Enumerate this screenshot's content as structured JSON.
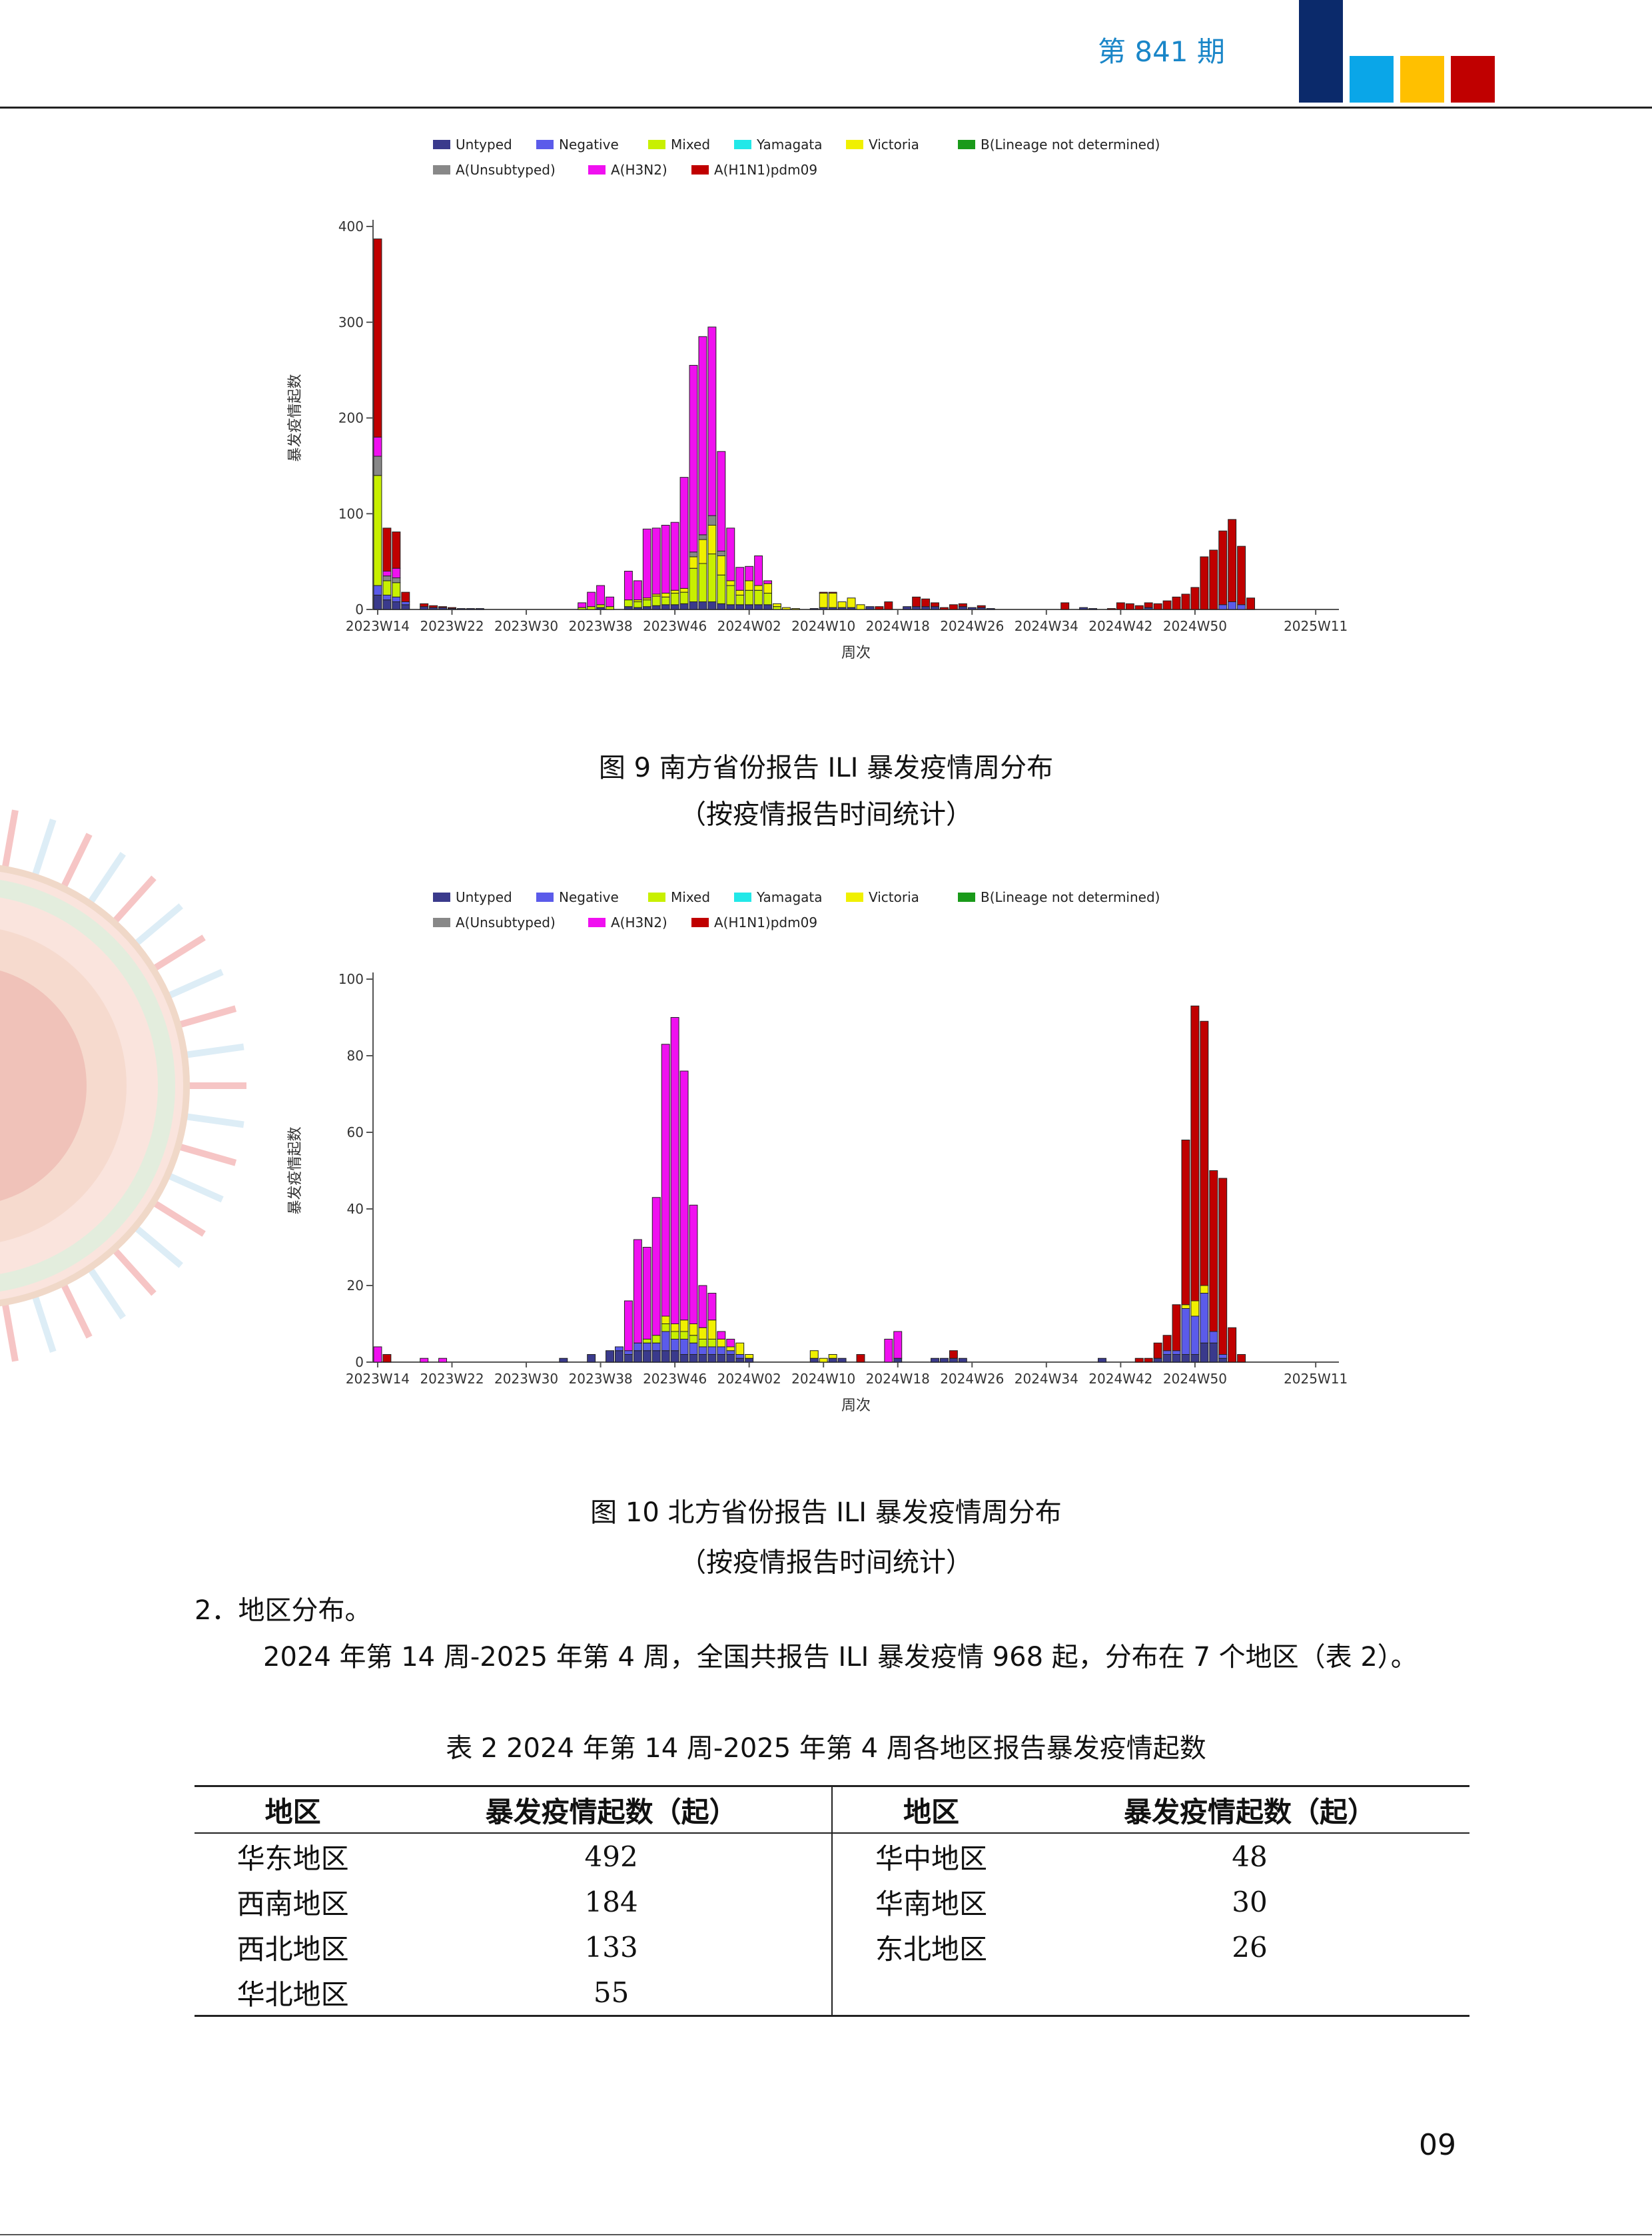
{
  "header": {
    "issue": "第 841 期",
    "blocks": [
      {
        "color": "#0b2a6b"
      },
      {
        "color": "#0aa6e8"
      },
      {
        "color": "#ffc000"
      },
      {
        "color": "#c00000"
      }
    ]
  },
  "legend_entries": [
    {
      "name": "Untyped",
      "color": "#3a3a8c"
    },
    {
      "name": "Negative",
      "color": "#5b5bea"
    },
    {
      "name": "Mixed",
      "color": "#c8f000"
    },
    {
      "name": "Yamagata",
      "color": "#22e8e8"
    },
    {
      "name": "Victoria",
      "color": "#f0f000"
    },
    {
      "name": "B(Lineage not determined)",
      "color": "#1a9a1a"
    },
    {
      "name": "A(Unsubtyped)",
      "color": "#888888"
    },
    {
      "name": "A(H3N2)",
      "color": "#f010f0"
    },
    {
      "name": "A(H1N1)pdm09",
      "color": "#c00000"
    }
  ],
  "chart_data": [
    {
      "type": "bar",
      "stacked": true,
      "ylabel": "暴发疫情起数",
      "xlabel": "周次",
      "ylim": [
        0,
        400
      ],
      "yticks": [
        0,
        100,
        200,
        300,
        400
      ],
      "xtick_labels": [
        "2023W14",
        "2023W22",
        "2023W30",
        "2023W38",
        "2023W46",
        "2024W02",
        "2024W10",
        "2024W18",
        "2024W26",
        "2024W34",
        "2024W42",
        "2024W50",
        "2025W11"
      ],
      "bars": [
        {
          "week": "2023W14",
          "Untyped": 15,
          "Negative": 10,
          "Mixed": 115,
          "A(Unsubtyped)": 20,
          "A(H3N2)": 20,
          "A(H1N1)pdm09": 207
        },
        {
          "week": "2023W15",
          "Untyped": 10,
          "Negative": 5,
          "Mixed": 15,
          "A(Unsubtyped)": 5,
          "A(H3N2)": 5,
          "A(H1N1)pdm09": 45
        },
        {
          "week": "2023W16",
          "Untyped": 8,
          "Negative": 5,
          "Mixed": 15,
          "A(Unsubtyped)": 5,
          "A(H3N2)": 10,
          "A(H1N1)pdm09": 38
        },
        {
          "week": "2023W17",
          "Untyped": 5,
          "Negative": 3,
          "A(H1N1)pdm09": 10
        },
        {
          "week": "2023W19",
          "Untyped": 3,
          "A(H1N1)pdm09": 3
        },
        {
          "week": "2023W20",
          "Untyped": 2,
          "A(H1N1)pdm09": 2
        },
        {
          "week": "2023W21",
          "Untyped": 2,
          "A(H1N1)pdm09": 1
        },
        {
          "week": "2023W22",
          "Untyped": 1,
          "A(H1N1)pdm09": 1
        },
        {
          "week": "2023W23",
          "Untyped": 1
        },
        {
          "week": "2023W24",
          "Untyped": 1
        },
        {
          "week": "2023W25",
          "Untyped": 1
        },
        {
          "week": "2023W36",
          "Mixed": 2,
          "A(H3N2)": 5
        },
        {
          "week": "2023W37",
          "Mixed": 3,
          "A(H3N2)": 15
        },
        {
          "week": "2023W38",
          "Untyped": 2,
          "Mixed": 3,
          "A(H3N2)": 20
        },
        {
          "week": "2023W39",
          "Mixed": 3,
          "A(H3N2)": 10
        },
        {
          "week": "2023W41",
          "Untyped": 3,
          "Mixed": 7,
          "A(H3N2)": 30
        },
        {
          "week": "2023W42",
          "Untyped": 2,
          "Mixed": 6,
          "Victoria": 2,
          "A(H3N2)": 20
        },
        {
          "week": "2023W43",
          "Untyped": 3,
          "Mixed": 7,
          "Victoria": 2,
          "A(H3N2)": 72
        },
        {
          "week": "2023W44",
          "Untyped": 4,
          "Mixed": 10,
          "Victoria": 2,
          "A(H3N2)": 69
        },
        {
          "week": "2023W45",
          "Untyped": 5,
          "Mixed": 8,
          "Victoria": 4,
          "A(H3N2)": 71
        },
        {
          "week": "2023W46",
          "Untyped": 5,
          "Mixed": 12,
          "Victoria": 3,
          "A(H3N2)": 71
        },
        {
          "week": "2023W47",
          "Untyped": 6,
          "Mixed": 12,
          "Victoria": 4,
          "A(H3N2)": 116
        },
        {
          "week": "2023W48",
          "Untyped": 8,
          "Mixed": 35,
          "Victoria": 12,
          "A(Unsubtyped)": 5,
          "A(H3N2)": 195
        },
        {
          "week": "2023W49",
          "Untyped": 8,
          "Mixed": 40,
          "Victoria": 25,
          "A(Unsubtyped)": 5,
          "A(H3N2)": 207
        },
        {
          "week": "2023W50",
          "Untyped": 8,
          "Mixed": 50,
          "Victoria": 30,
          "A(Unsubtyped)": 10,
          "A(H3N2)": 197
        },
        {
          "week": "2023W51",
          "Untyped": 6,
          "Mixed": 30,
          "Victoria": 20,
          "A(Unsubtyped)": 5,
          "A(H3N2)": 104
        },
        {
          "week": "2023W52",
          "Untyped": 5,
          "Mixed": 20,
          "Victoria": 5,
          "A(H3N2)": 55
        },
        {
          "week": "2024W01",
          "Untyped": 5,
          "Mixed": 10,
          "Victoria": 5,
          "A(H3N2)": 24
        },
        {
          "week": "2024W02",
          "Untyped": 5,
          "Mixed": 15,
          "Victoria": 10,
          "A(H3N2)": 15
        },
        {
          "week": "2024W03",
          "Untyped": 5,
          "Mixed": 15,
          "Victoria": 5,
          "A(H3N2)": 31
        },
        {
          "week": "2024W04",
          "Untyped": 5,
          "Mixed": 12,
          "Victoria": 10,
          "A(H3N2)": 3
        },
        {
          "week": "2024W05",
          "Mixed": 3,
          "Victoria": 3
        },
        {
          "week": "2024W06",
          "Victoria": 2
        },
        {
          "week": "2024W07",
          "Victoria": 1
        },
        {
          "week": "2024W09",
          "Untyped": 1
        },
        {
          "week": "2024W10",
          "Untyped": 2,
          "Victoria": 15,
          "A(H1N1)pdm09": 1
        },
        {
          "week": "2024W11",
          "Untyped": 2,
          "Victoria": 15,
          "A(H1N1)pdm09": 1
        },
        {
          "week": "2024W12",
          "Untyped": 2,
          "Victoria": 6
        },
        {
          "week": "2024W13",
          "Untyped": 2,
          "Victoria": 10
        },
        {
          "week": "2024W14",
          "Victoria": 5
        },
        {
          "week": "2024W15",
          "Untyped": 3
        },
        {
          "week": "2024W16",
          "A(H1N1)pdm09": 3
        },
        {
          "week": "2024W17",
          "A(H1N1)pdm09": 8
        },
        {
          "week": "2024W19",
          "Untyped": 3
        },
        {
          "week": "2024W20",
          "Untyped": 3,
          "A(H1N1)pdm09": 10
        },
        {
          "week": "2024W21",
          "Untyped": 3,
          "A(H1N1)pdm09": 8
        },
        {
          "week": "2024W22",
          "Untyped": 3,
          "A(H1N1)pdm09": 4
        },
        {
          "week": "2024W23",
          "A(H1N1)pdm09": 2
        },
        {
          "week": "2024W24",
          "A(H1N1)pdm09": 5
        },
        {
          "week": "2024W25",
          "Untyped": 3,
          "A(H1N1)pdm09": 3
        },
        {
          "week": "2024W26",
          "Untyped": 2
        },
        {
          "week": "2024W27",
          "Untyped": 2,
          "A(H1N1)pdm09": 2
        },
        {
          "week": "2024W28",
          "Untyped": 1
        },
        {
          "week": "2024W36",
          "A(H1N1)pdm09": 7
        },
        {
          "week": "2024W38",
          "Untyped": 2
        },
        {
          "week": "2024W39",
          "Untyped": 1
        },
        {
          "week": "2024W41",
          "A(H1N1)pdm09": 1
        },
        {
          "week": "2024W42",
          "A(H1N1)pdm09": 7
        },
        {
          "week": "2024W43",
          "A(H1N1)pdm09": 6
        },
        {
          "week": "2024W44",
          "A(H1N1)pdm09": 4
        },
        {
          "week": "2024W45",
          "Untyped": 2,
          "A(H1N1)pdm09": 5
        },
        {
          "week": "2024W46",
          "A(H1N1)pdm09": 6
        },
        {
          "week": "2024W47",
          "A(H1N1)pdm09": 9
        },
        {
          "week": "2024W48",
          "A(H1N1)pdm09": 13
        },
        {
          "week": "2024W49",
          "A(H1N1)pdm09": 16
        },
        {
          "week": "2024W50",
          "A(H1N1)pdm09": 23
        },
        {
          "week": "2024W51",
          "A(H1N1)pdm09": 55
        },
        {
          "week": "2024W52",
          "A(H1N1)pdm09": 62
        },
        {
          "week": "2025W01",
          "Negative": 5,
          "A(H1N1)pdm09": 77
        },
        {
          "week": "2025W02",
          "Negative": 8,
          "A(H1N1)pdm09": 86
        },
        {
          "week": "2025W03",
          "Negative": 5,
          "A(H1N1)pdm09": 61
        },
        {
          "week": "2025W04",
          "A(H1N1)pdm09": 12
        }
      ]
    },
    {
      "type": "bar",
      "stacked": true,
      "ylabel": "暴发疫情起数",
      "xlabel": "周次",
      "ylim": [
        0,
        100
      ],
      "yticks": [
        0,
        20,
        40,
        60,
        80,
        100
      ],
      "xtick_labels": [
        "2023W14",
        "2023W22",
        "2023W30",
        "2023W38",
        "2023W46",
        "2024W02",
        "2024W10",
        "2024W18",
        "2024W26",
        "2024W34",
        "2024W42",
        "2024W50",
        "2025W11"
      ],
      "bars": [
        {
          "week": "2023W14",
          "A(H3N2)": 4
        },
        {
          "week": "2023W15",
          "A(H1N1)pdm09": 2
        },
        {
          "week": "2023W19",
          "A(H3N2)": 1
        },
        {
          "week": "2023W21",
          "A(H3N2)": 1
        },
        {
          "week": "2023W34",
          "Untyped": 1
        },
        {
          "week": "2023W37",
          "Untyped": 2
        },
        {
          "week": "2023W39",
          "Untyped": 3
        },
        {
          "week": "2023W40",
          "Untyped": 3,
          "Negative": 1
        },
        {
          "week": "2023W41",
          "Untyped": 2,
          "Negative": 1,
          "A(H3N2)": 13
        },
        {
          "week": "2023W42",
          "Untyped": 3,
          "Negative": 2,
          "A(H3N2)": 27
        },
        {
          "week": "2023W43",
          "Untyped": 3,
          "Negative": 2,
          "Mixed": 1,
          "A(H3N2)": 24
        },
        {
          "week": "2023W44",
          "Untyped": 3,
          "Negative": 2,
          "Mixed": 2,
          "A(H3N2)": 36
        },
        {
          "week": "2023W45",
          "Untyped": 3,
          "Negative": 5,
          "Mixed": 2,
          "Victoria": 2,
          "A(H3N2)": 71
        },
        {
          "week": "2023W46",
          "Untyped": 3,
          "Negative": 3,
          "Mixed": 2,
          "Victoria": 2,
          "A(H3N2)": 80
        },
        {
          "week": "2023W47",
          "Untyped": 2,
          "Negative": 4,
          "Mixed": 2,
          "Victoria": 3,
          "A(H3N2)": 65
        },
        {
          "week": "2023W48",
          "Untyped": 2,
          "Negative": 3,
          "Mixed": 2,
          "Victoria": 3,
          "A(H3N2)": 31
        },
        {
          "week": "2023W49",
          "Untyped": 2,
          "Negative": 2,
          "Mixed": 2,
          "Victoria": 3,
          "A(H3N2)": 11
        },
        {
          "week": "2023W50",
          "Untyped": 2,
          "Negative": 2,
          "Mixed": 2,
          "Victoria": 5,
          "A(H3N2)": 7
        },
        {
          "week": "2023W51",
          "Untyped": 2,
          "Negative": 2,
          "Victoria": 2,
          "A(H3N2)": 2
        },
        {
          "week": "2023W52",
          "Untyped": 2,
          "Negative": 1,
          "Victoria": 1,
          "A(H3N2)": 2
        },
        {
          "week": "2024W01",
          "Untyped": 1,
          "Negative": 1,
          "Victoria": 3
        },
        {
          "week": "2024W02",
          "Untyped": 1,
          "Victoria": 1
        },
        {
          "week": "2024W09",
          "Untyped": 1,
          "Victoria": 2
        },
        {
          "week": "2024W10",
          "Victoria": 1
        },
        {
          "week": "2024W11",
          "Untyped": 1,
          "Victoria": 1
        },
        {
          "week": "2024W12",
          "Untyped": 1
        },
        {
          "week": "2024W14",
          "A(H1N1)pdm09": 2
        },
        {
          "week": "2024W17",
          "A(H3N2)": 6
        },
        {
          "week": "2024W18",
          "Untyped": 1,
          "A(H3N2)": 7
        },
        {
          "week": "2024W22",
          "Untyped": 1
        },
        {
          "week": "2024W23",
          "Untyped": 1
        },
        {
          "week": "2024W24",
          "Untyped": 1,
          "A(H1N1)pdm09": 2
        },
        {
          "week": "2024W25",
          "Untyped": 1
        },
        {
          "week": "2024W40",
          "Untyped": 1
        },
        {
          "week": "2024W44",
          "A(H1N1)pdm09": 1
        },
        {
          "week": "2024W45",
          "A(H1N1)pdm09": 1
        },
        {
          "week": "2024W46",
          "Untyped": 1,
          "A(H1N1)pdm09": 4
        },
        {
          "week": "2024W47",
          "Untyped": 2,
          "Negative": 1,
          "A(H1N1)pdm09": 4
        },
        {
          "week": "2024W48",
          "Untyped": 2,
          "Negative": 1,
          "A(H1N1)pdm09": 12
        },
        {
          "week": "2024W49",
          "Untyped": 2,
          "Negative": 12,
          "Victoria": 1,
          "A(H1N1)pdm09": 43
        },
        {
          "week": "2024W50",
          "Untyped": 2,
          "Negative": 10,
          "Victoria": 4,
          "A(H1N1)pdm09": 77
        },
        {
          "week": "2024W51",
          "Untyped": 5,
          "Negative": 13,
          "Victoria": 2,
          "A(H1N1)pdm09": 69
        },
        {
          "week": "2024W52",
          "Untyped": 5,
          "Negative": 3,
          "A(H1N1)pdm09": 42
        },
        {
          "week": "2025W01",
          "Untyped": 1,
          "Negative": 1,
          "A(H1N1)pdm09": 46
        },
        {
          "week": "2025W02",
          "A(H1N1)pdm09": 9
        },
        {
          "week": "2025W03",
          "A(H1N1)pdm09": 2
        }
      ]
    }
  ],
  "figure9": {
    "caption_line1": "图 9   南方省份报告 ILI 暴发疫情周分布",
    "caption_line2": "（按疫情报告时间统计）"
  },
  "figure10": {
    "caption_line1": "图 10   北方省份报告 ILI 暴发疫情周分布",
    "caption_line2": "（按疫情报告时间统计）"
  },
  "section": {
    "heading": "2．地区分布。",
    "paragraph": "2024 年第 14 周-2025 年第 4 周，全国共报告 ILI 暴发疫情 968 起，分布在 7 个地区（表 2）。"
  },
  "table2": {
    "title": "表 2   2024 年第 14 周-2025 年第 4 周各地区报告暴发疫情起数",
    "headers": [
      "地区",
      "暴发疫情起数（起）",
      "地区",
      "暴发疫情起数（起）"
    ],
    "rows": [
      [
        "华东地区",
        "492",
        "华中地区",
        "48"
      ],
      [
        "西南地区",
        "184",
        "华南地区",
        "30"
      ],
      [
        "西北地区",
        "133",
        "东北地区",
        "26"
      ],
      [
        "华北地区",
        "55",
        "",
        ""
      ]
    ]
  },
  "page_number": "09"
}
